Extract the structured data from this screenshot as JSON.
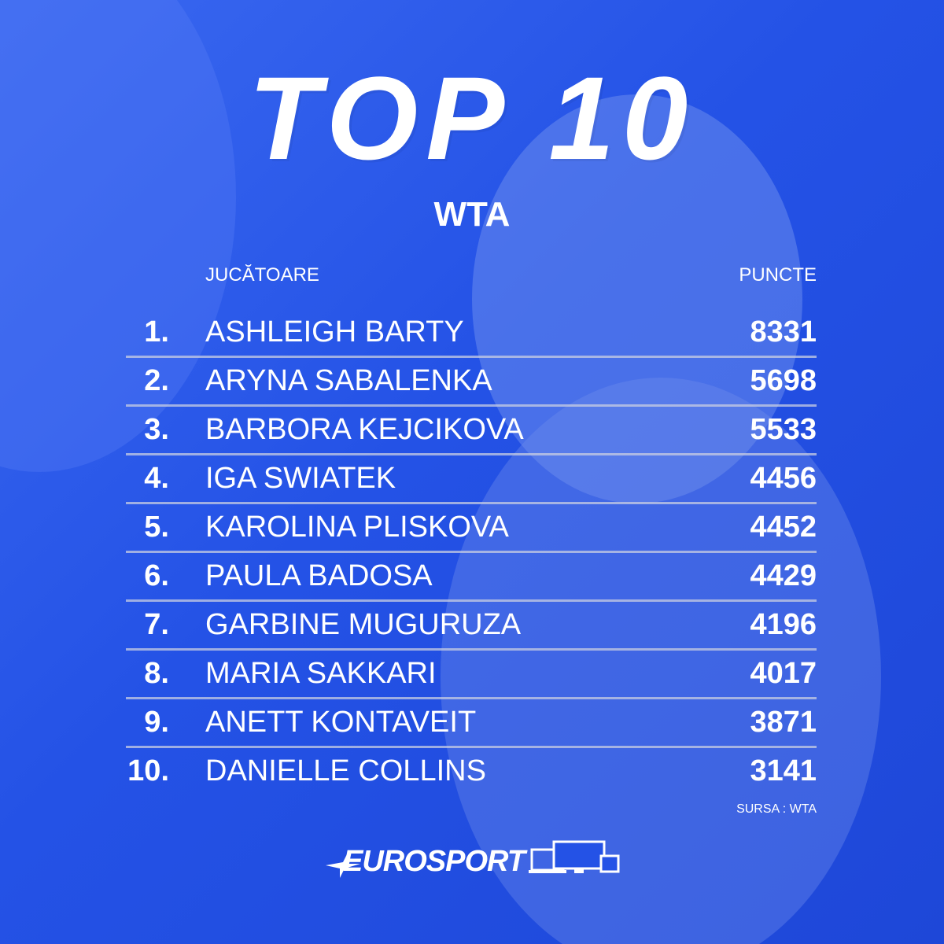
{
  "header": {
    "title": "TOP 10",
    "subtitle": "WTA"
  },
  "table": {
    "columns": [
      "JUCĂTOARE",
      "PUNCTE"
    ],
    "rows": [
      [
        "1.",
        "ASHLEIGH BARTY",
        8331
      ],
      [
        "2.",
        "ARYNA SABALENKA",
        5698
      ],
      [
        "3.",
        "BARBORA KEJCIKOVA",
        5533
      ],
      [
        "4.",
        "IGA SWIATEK",
        4456
      ],
      [
        "5.",
        "KAROLINA PLISKOVA",
        4452
      ],
      [
        "6.",
        "PAULA BADOSA",
        4429
      ],
      [
        "7.",
        "GARBINE MUGURUZA",
        4196
      ],
      [
        "8.",
        "MARIA SAKKARI",
        4017
      ],
      [
        "9.",
        "ANETT KONTAVEIT",
        3871
      ],
      [
        "10.",
        "DANIELLE COLLINS",
        3141
      ]
    ]
  },
  "footer": {
    "source": "SURSA : WTA",
    "brand": "EUROSPORT"
  }
}
